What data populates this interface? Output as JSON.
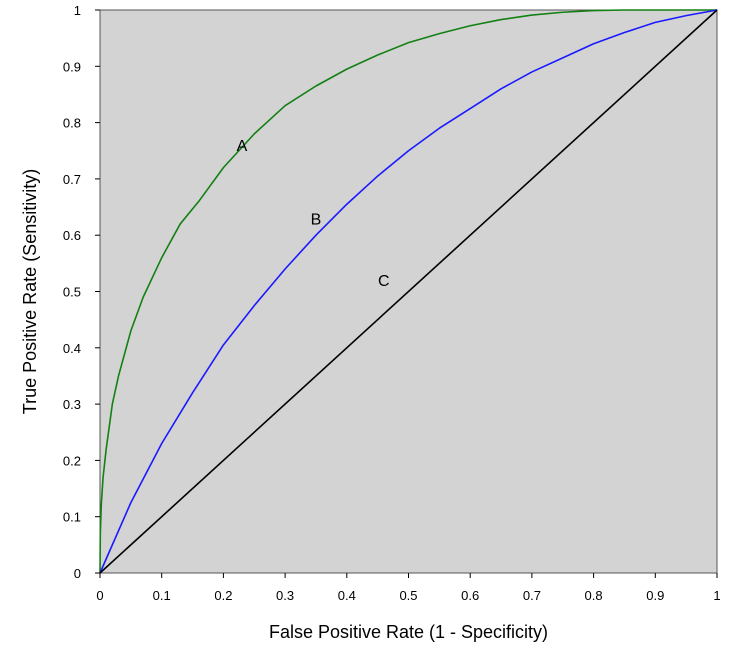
{
  "chart_data": {
    "type": "line",
    "title": "",
    "xlabel": "False Positive Rate (1 - Specificity)",
    "ylabel": "True Positive Rate (Sensitivity)",
    "xlim": [
      0,
      1
    ],
    "ylim": [
      0,
      1
    ],
    "x_ticks": [
      0,
      0.1,
      0.2,
      0.3,
      0.4,
      0.5,
      0.6,
      0.7,
      0.8,
      0.9,
      1
    ],
    "x_tick_labels": [
      "0",
      "0.1",
      "0.2",
      "0.3",
      "0.4",
      "0.5",
      "0.6",
      "0.7",
      "0.8",
      "0.9",
      "1"
    ],
    "y_ticks": [
      0,
      0.1,
      0.2,
      0.3,
      0.4,
      0.5,
      0.6,
      0.7,
      0.8,
      0.9,
      1
    ],
    "y_tick_labels": [
      "0",
      "0.1",
      "0.2",
      "0.3",
      "0.4",
      "0.5",
      "0.6",
      "0.7",
      "0.8",
      "0.9",
      "1"
    ],
    "grid": false,
    "legend": "none",
    "plot_background": "#d3d3d3",
    "series": [
      {
        "label": "A",
        "color": "#138013",
        "label_anchor": [
          0.23,
          0.76
        ],
        "x": [
          0,
          0.0005,
          0.002,
          0.005,
          0.01,
          0.02,
          0.03,
          0.05,
          0.07,
          0.1,
          0.13,
          0.16,
          0.2,
          0.25,
          0.3,
          0.35,
          0.4,
          0.45,
          0.5,
          0.55,
          0.6,
          0.65,
          0.7,
          0.75,
          0.8,
          0.85,
          0.9,
          0.95,
          1
        ],
        "y": [
          0,
          0.07,
          0.12,
          0.17,
          0.22,
          0.3,
          0.35,
          0.43,
          0.49,
          0.56,
          0.62,
          0.66,
          0.72,
          0.78,
          0.83,
          0.865,
          0.895,
          0.92,
          0.942,
          0.958,
          0.972,
          0.983,
          0.991,
          0.996,
          0.999,
          1.0,
          1.0,
          1.0,
          1.0
        ]
      },
      {
        "label": "B",
        "color": "#1a1aff",
        "label_anchor": [
          0.35,
          0.63
        ],
        "x": [
          0,
          0.05,
          0.1,
          0.15,
          0.2,
          0.25,
          0.3,
          0.35,
          0.4,
          0.45,
          0.5,
          0.55,
          0.6,
          0.65,
          0.7,
          0.75,
          0.8,
          0.85,
          0.9,
          0.95,
          1
        ],
        "y": [
          0,
          0.125,
          0.23,
          0.32,
          0.405,
          0.475,
          0.54,
          0.6,
          0.655,
          0.705,
          0.75,
          0.79,
          0.825,
          0.86,
          0.89,
          0.915,
          0.94,
          0.96,
          0.978,
          0.99,
          1
        ]
      },
      {
        "label": "C",
        "color": "#000000",
        "label_anchor": [
          0.46,
          0.52
        ],
        "x": [
          0,
          1
        ],
        "y": [
          0,
          1
        ]
      }
    ]
  }
}
